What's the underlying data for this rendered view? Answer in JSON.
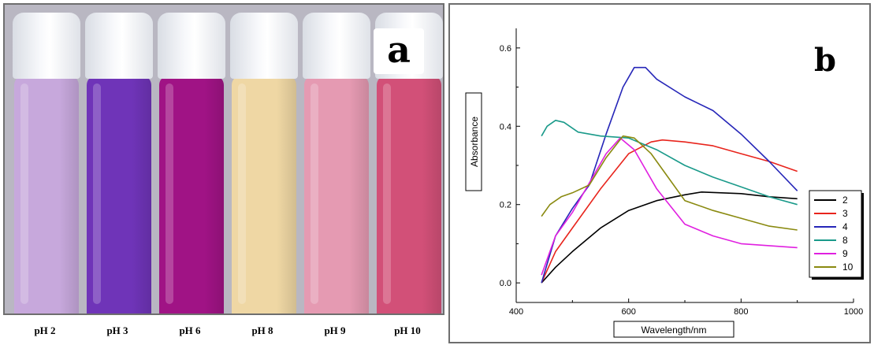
{
  "panel_a": {
    "letter": "a",
    "vials": [
      {
        "label": "pH 2",
        "color": "#c7a8dc"
      },
      {
        "label": "pH 3",
        "color": "#6f34b8"
      },
      {
        "label": "pH 6",
        "color": "#a01385"
      },
      {
        "label": "pH 8",
        "color": "#efd7a4"
      },
      {
        "label": "pH 9",
        "color": "#e59ab2"
      },
      {
        "label": "pH 10",
        "color": "#d25078"
      }
    ]
  },
  "panel_b": {
    "letter": "b"
  },
  "chart_data": {
    "type": "line",
    "xlabel": "Wavelength/nm",
    "ylabel": "Absorbance",
    "xlim": [
      400,
      1000
    ],
    "ylim": [
      -0.05,
      0.65
    ],
    "xticks": [
      "400",
      "600",
      "800",
      "1000"
    ],
    "yticks": [
      "0.0",
      "0.2",
      "0.4",
      "0.6"
    ],
    "legend_position": "right",
    "series": [
      {
        "name": "2",
        "color": "#000000",
        "x": [
          445,
          470,
          500,
          550,
          600,
          650,
          700,
          730,
          800,
          850,
          900
        ],
        "y": [
          0.0,
          0.04,
          0.08,
          0.14,
          0.185,
          0.21,
          0.225,
          0.232,
          0.228,
          0.22,
          0.215
        ]
      },
      {
        "name": "3",
        "color": "#e8241c",
        "x": [
          445,
          470,
          500,
          550,
          600,
          640,
          660,
          700,
          750,
          800,
          850,
          900
        ],
        "y": [
          0.0,
          0.08,
          0.14,
          0.24,
          0.33,
          0.36,
          0.365,
          0.36,
          0.35,
          0.33,
          0.31,
          0.285
        ]
      },
      {
        "name": "4",
        "color": "#2626b8",
        "x": [
          445,
          470,
          500,
          530,
          560,
          590,
          610,
          630,
          650,
          700,
          750,
          800,
          850,
          900
        ],
        "y": [
          0.0,
          0.12,
          0.19,
          0.25,
          0.38,
          0.5,
          0.55,
          0.55,
          0.52,
          0.475,
          0.44,
          0.38,
          0.31,
          0.235
        ]
      },
      {
        "name": "8",
        "color": "#1a9a8a",
        "x": [
          445,
          455,
          470,
          485,
          510,
          550,
          600,
          650,
          700,
          750,
          800,
          850,
          900
        ],
        "y": [
          0.375,
          0.4,
          0.415,
          0.41,
          0.385,
          0.375,
          0.37,
          0.34,
          0.3,
          0.27,
          0.245,
          0.22,
          0.2
        ]
      },
      {
        "name": "9",
        "color": "#e020e0",
        "x": [
          445,
          470,
          500,
          530,
          560,
          585,
          610,
          650,
          700,
          750,
          800,
          850,
          900
        ],
        "y": [
          0.02,
          0.12,
          0.18,
          0.255,
          0.33,
          0.37,
          0.34,
          0.24,
          0.15,
          0.12,
          0.1,
          0.095,
          0.09
        ]
      },
      {
        "name": "10",
        "color": "#8a8a10",
        "x": [
          445,
          460,
          480,
          500,
          530,
          560,
          590,
          610,
          640,
          670,
          700,
          750,
          800,
          850,
          900
        ],
        "y": [
          0.17,
          0.2,
          0.22,
          0.23,
          0.25,
          0.32,
          0.375,
          0.37,
          0.33,
          0.27,
          0.21,
          0.185,
          0.165,
          0.145,
          0.135
        ]
      }
    ]
  }
}
